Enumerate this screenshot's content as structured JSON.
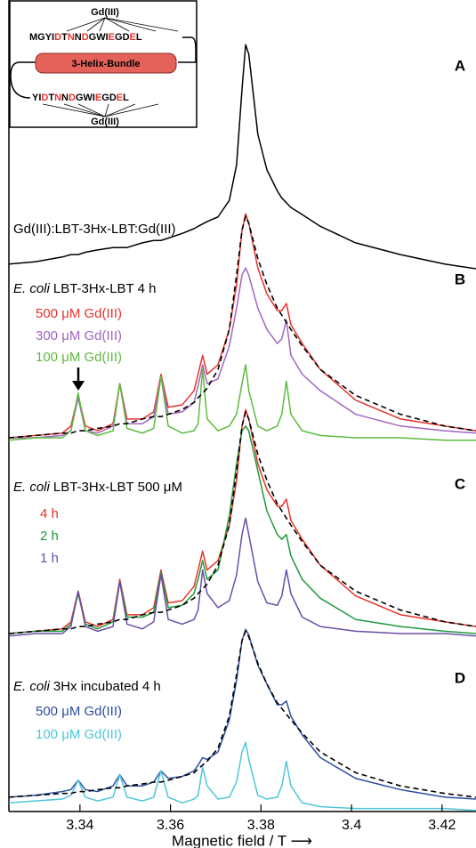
{
  "inset": {
    "gd_top": "Gd(III)",
    "sequence_top": [
      "MGYI",
      "D",
      "T",
      "N",
      "N",
      "D",
      "GWI",
      "E",
      "GD",
      "E",
      "L"
    ],
    "helix": "3-Helix-Bundle",
    "sequence_bottom": [
      "YI",
      "D",
      "T",
      "N",
      "N",
      "D",
      "GWI",
      "E",
      "GD",
      "E",
      "L"
    ],
    "gd_bottom": "Gd(III)"
  },
  "chart_data": [
    {
      "type": "line",
      "panel": "A",
      "caption": "Gd(III):LBT-3Hx-LBT:Gd(III)",
      "xlim": [
        3.3243,
        3.4275
      ],
      "ylim": [
        0,
        1
      ],
      "x": [
        3.3243,
        3.3302,
        3.3361,
        3.338,
        3.3396,
        3.3412,
        3.3439,
        3.3473,
        3.3488,
        3.3504,
        3.3538,
        3.3563,
        3.3579,
        3.3595,
        3.3626,
        3.3652,
        3.3661,
        3.3671,
        3.3681,
        3.3705,
        3.373,
        3.3746,
        3.3758,
        3.3766,
        3.3773,
        3.3793,
        3.3813,
        3.3836,
        3.3846,
        3.3856,
        3.3866,
        3.3891,
        3.3931,
        3.4009,
        3.4108,
        3.4206,
        3.4275
      ],
      "series": [
        {
          "color": "#000000",
          "values": [
            0.05,
            0.06,
            0.08,
            0.09,
            0.09,
            0.1,
            0.11,
            0.12,
            0.12,
            0.12,
            0.14,
            0.15,
            0.15,
            0.16,
            0.18,
            0.2,
            0.21,
            0.22,
            0.23,
            0.25,
            0.32,
            0.47,
            0.79,
            0.98,
            0.94,
            0.6,
            0.45,
            0.36,
            0.33,
            0.31,
            0.29,
            0.26,
            0.21,
            0.14,
            0.09,
            0.05,
            0.03
          ]
        }
      ]
    },
    {
      "type": "line",
      "panel": "B",
      "caption_italic": "E. coli",
      "caption": "LBT-3Hx-LBT 4 h",
      "xlim": [
        3.3243,
        3.4275
      ],
      "ylim": [
        0,
        1
      ],
      "x": [
        3.3243,
        3.3302,
        3.3361,
        3.338,
        3.3396,
        3.3412,
        3.3439,
        3.3473,
        3.3488,
        3.3504,
        3.3538,
        3.3563,
        3.3579,
        3.3595,
        3.3626,
        3.3652,
        3.3661,
        3.3671,
        3.3681,
        3.3705,
        3.373,
        3.3746,
        3.3758,
        3.3766,
        3.3773,
        3.3793,
        3.3813,
        3.3836,
        3.3846,
        3.3856,
        3.3866,
        3.3891,
        3.3931,
        3.4009,
        3.4108,
        3.4206,
        3.4275
      ],
      "series": [
        {
          "name": "500 μM Gd(III)",
          "color": "#e8322a",
          "values": [
            0.03,
            0.04,
            0.05,
            0.08,
            0.21,
            0.08,
            0.06,
            0.09,
            0.26,
            0.11,
            0.11,
            0.14,
            0.3,
            0.16,
            0.17,
            0.23,
            0.3,
            0.38,
            0.3,
            0.34,
            0.49,
            0.68,
            0.91,
            0.98,
            0.94,
            0.75,
            0.64,
            0.57,
            0.57,
            0.6,
            0.51,
            0.43,
            0.32,
            0.19,
            0.11,
            0.08,
            0.06
          ]
        },
        {
          "name": "300 μM Gd(III)",
          "color": "#a265c0",
          "values": [
            0.03,
            0.03,
            0.04,
            0.06,
            0.2,
            0.06,
            0.05,
            0.08,
            0.26,
            0.09,
            0.09,
            0.12,
            0.29,
            0.13,
            0.14,
            0.18,
            0.25,
            0.34,
            0.26,
            0.28,
            0.42,
            0.58,
            0.72,
            0.75,
            0.72,
            0.58,
            0.49,
            0.43,
            0.45,
            0.53,
            0.38,
            0.3,
            0.23,
            0.13,
            0.08,
            0.06,
            0.05
          ]
        },
        {
          "name": "100 μM Gd(III)",
          "color": "#5dbb3f",
          "values": [
            0.02,
            0.03,
            0.03,
            0.06,
            0.22,
            0.06,
            0.04,
            0.06,
            0.26,
            0.07,
            0.05,
            0.07,
            0.29,
            0.08,
            0.05,
            0.06,
            0.09,
            0.32,
            0.11,
            0.06,
            0.08,
            0.13,
            0.26,
            0.34,
            0.23,
            0.08,
            0.06,
            0.08,
            0.13,
            0.27,
            0.13,
            0.06,
            0.04,
            0.03,
            0.03,
            0.02,
            0.02
          ]
        },
        {
          "color": "#000000",
          "dash": true,
          "values": [
            0.03,
            0.04,
            0.05,
            0.05,
            0.06,
            0.06,
            0.07,
            0.08,
            0.09,
            0.09,
            0.11,
            0.12,
            0.12,
            0.13,
            0.15,
            0.18,
            0.2,
            0.22,
            0.24,
            0.32,
            0.49,
            0.72,
            0.91,
            0.97,
            0.94,
            0.79,
            0.68,
            0.58,
            0.55,
            0.52,
            0.49,
            0.42,
            0.32,
            0.21,
            0.13,
            0.08,
            0.06
          ]
        }
      ]
    },
    {
      "type": "line",
      "panel": "C",
      "caption_italic": "E. coli",
      "caption": "LBT-3Hx-LBT 500 μM",
      "xlim": [
        3.3243,
        3.4275
      ],
      "ylim": [
        0,
        1
      ],
      "x": [
        3.3243,
        3.3302,
        3.3361,
        3.338,
        3.3396,
        3.3412,
        3.3439,
        3.3473,
        3.3488,
        3.3504,
        3.3538,
        3.3563,
        3.3579,
        3.3595,
        3.3626,
        3.3652,
        3.3661,
        3.3671,
        3.3681,
        3.3705,
        3.373,
        3.3746,
        3.3758,
        3.3766,
        3.3773,
        3.3793,
        3.3813,
        3.3836,
        3.3846,
        3.3856,
        3.3866,
        3.3891,
        3.3931,
        3.4009,
        3.4108,
        3.4206,
        3.4275
      ],
      "series": [
        {
          "name": "4 h",
          "color": "#e8322a",
          "values": [
            0.03,
            0.04,
            0.05,
            0.08,
            0.21,
            0.08,
            0.06,
            0.09,
            0.26,
            0.11,
            0.11,
            0.14,
            0.3,
            0.16,
            0.17,
            0.23,
            0.3,
            0.38,
            0.3,
            0.34,
            0.49,
            0.68,
            0.91,
            0.98,
            0.94,
            0.75,
            0.64,
            0.57,
            0.57,
            0.6,
            0.51,
            0.43,
            0.32,
            0.19,
            0.11,
            0.08,
            0.06
          ]
        },
        {
          "name": "2 h",
          "color": "#1f9a3c",
          "values": [
            0.03,
            0.04,
            0.04,
            0.07,
            0.2,
            0.07,
            0.05,
            0.08,
            0.25,
            0.1,
            0.1,
            0.12,
            0.29,
            0.14,
            0.15,
            0.2,
            0.26,
            0.34,
            0.26,
            0.3,
            0.53,
            0.75,
            0.89,
            0.91,
            0.89,
            0.72,
            0.55,
            0.45,
            0.43,
            0.45,
            0.36,
            0.26,
            0.18,
            0.09,
            0.06,
            0.04,
            0.03
          ]
        },
        {
          "name": "1 h",
          "color": "#6a4fa8",
          "values": [
            0.02,
            0.03,
            0.03,
            0.06,
            0.21,
            0.06,
            0.04,
            0.06,
            0.25,
            0.07,
            0.05,
            0.08,
            0.28,
            0.09,
            0.07,
            0.09,
            0.13,
            0.3,
            0.2,
            0.14,
            0.17,
            0.28,
            0.45,
            0.52,
            0.45,
            0.25,
            0.16,
            0.15,
            0.19,
            0.3,
            0.2,
            0.1,
            0.06,
            0.04,
            0.03,
            0.03,
            0.02
          ]
        },
        {
          "color": "#000000",
          "dash": true,
          "values": [
            0.03,
            0.04,
            0.05,
            0.05,
            0.06,
            0.06,
            0.07,
            0.08,
            0.09,
            0.09,
            0.11,
            0.12,
            0.12,
            0.13,
            0.15,
            0.18,
            0.2,
            0.22,
            0.24,
            0.32,
            0.49,
            0.72,
            0.91,
            0.97,
            0.94,
            0.79,
            0.68,
            0.58,
            0.55,
            0.52,
            0.49,
            0.42,
            0.32,
            0.21,
            0.13,
            0.08,
            0.06
          ]
        }
      ]
    },
    {
      "type": "line",
      "panel": "D",
      "caption_italic": "E. coli",
      "caption": "3Hx incubated 4 h",
      "xlim": [
        3.3243,
        3.4275
      ],
      "ylim": [
        0,
        1
      ],
      "xticks": [
        3.34,
        3.36,
        3.38,
        3.4,
        3.42
      ],
      "xlabel": "Magnetic field / T ⟶",
      "x": [
        3.3243,
        3.3302,
        3.3361,
        3.338,
        3.3396,
        3.3412,
        3.3439,
        3.3473,
        3.3488,
        3.3504,
        3.3538,
        3.3563,
        3.3579,
        3.3595,
        3.3626,
        3.3652,
        3.3661,
        3.3671,
        3.3681,
        3.3705,
        3.373,
        3.3746,
        3.3758,
        3.3766,
        3.3773,
        3.3793,
        3.3813,
        3.3836,
        3.3846,
        3.3856,
        3.3866,
        3.3891,
        3.3931,
        3.4009,
        3.4108,
        3.4206,
        3.4275
      ],
      "series": [
        {
          "name": "500 μM Gd(III)",
          "color": "#2c4da0",
          "values": [
            0.09,
            0.1,
            0.12,
            0.13,
            0.18,
            0.13,
            0.12,
            0.15,
            0.21,
            0.15,
            0.15,
            0.17,
            0.23,
            0.19,
            0.2,
            0.23,
            0.26,
            0.3,
            0.29,
            0.33,
            0.5,
            0.71,
            0.92,
            0.98,
            0.95,
            0.79,
            0.69,
            0.58,
            0.58,
            0.6,
            0.52,
            0.42,
            0.3,
            0.19,
            0.13,
            0.09,
            0.08
          ]
        },
        {
          "name": "100 μM Gd(III)",
          "color": "#4fc6d8",
          "values": [
            0.06,
            0.07,
            0.08,
            0.1,
            0.18,
            0.09,
            0.07,
            0.09,
            0.21,
            0.09,
            0.07,
            0.09,
            0.23,
            0.09,
            0.06,
            0.08,
            0.1,
            0.25,
            0.15,
            0.08,
            0.09,
            0.17,
            0.33,
            0.38,
            0.29,
            0.1,
            0.08,
            0.09,
            0.15,
            0.28,
            0.15,
            0.06,
            0.04,
            0.03,
            0.03,
            0.03,
            0.02
          ]
        },
        {
          "color": "#000000",
          "dash": true,
          "values": [
            0.09,
            0.1,
            0.11,
            0.11,
            0.12,
            0.12,
            0.13,
            0.14,
            0.14,
            0.15,
            0.16,
            0.17,
            0.17,
            0.18,
            0.2,
            0.22,
            0.24,
            0.26,
            0.28,
            0.35,
            0.52,
            0.74,
            0.92,
            0.97,
            0.94,
            0.8,
            0.69,
            0.59,
            0.56,
            0.53,
            0.5,
            0.43,
            0.33,
            0.22,
            0.15,
            0.11,
            0.09
          ]
        }
      ]
    }
  ]
}
